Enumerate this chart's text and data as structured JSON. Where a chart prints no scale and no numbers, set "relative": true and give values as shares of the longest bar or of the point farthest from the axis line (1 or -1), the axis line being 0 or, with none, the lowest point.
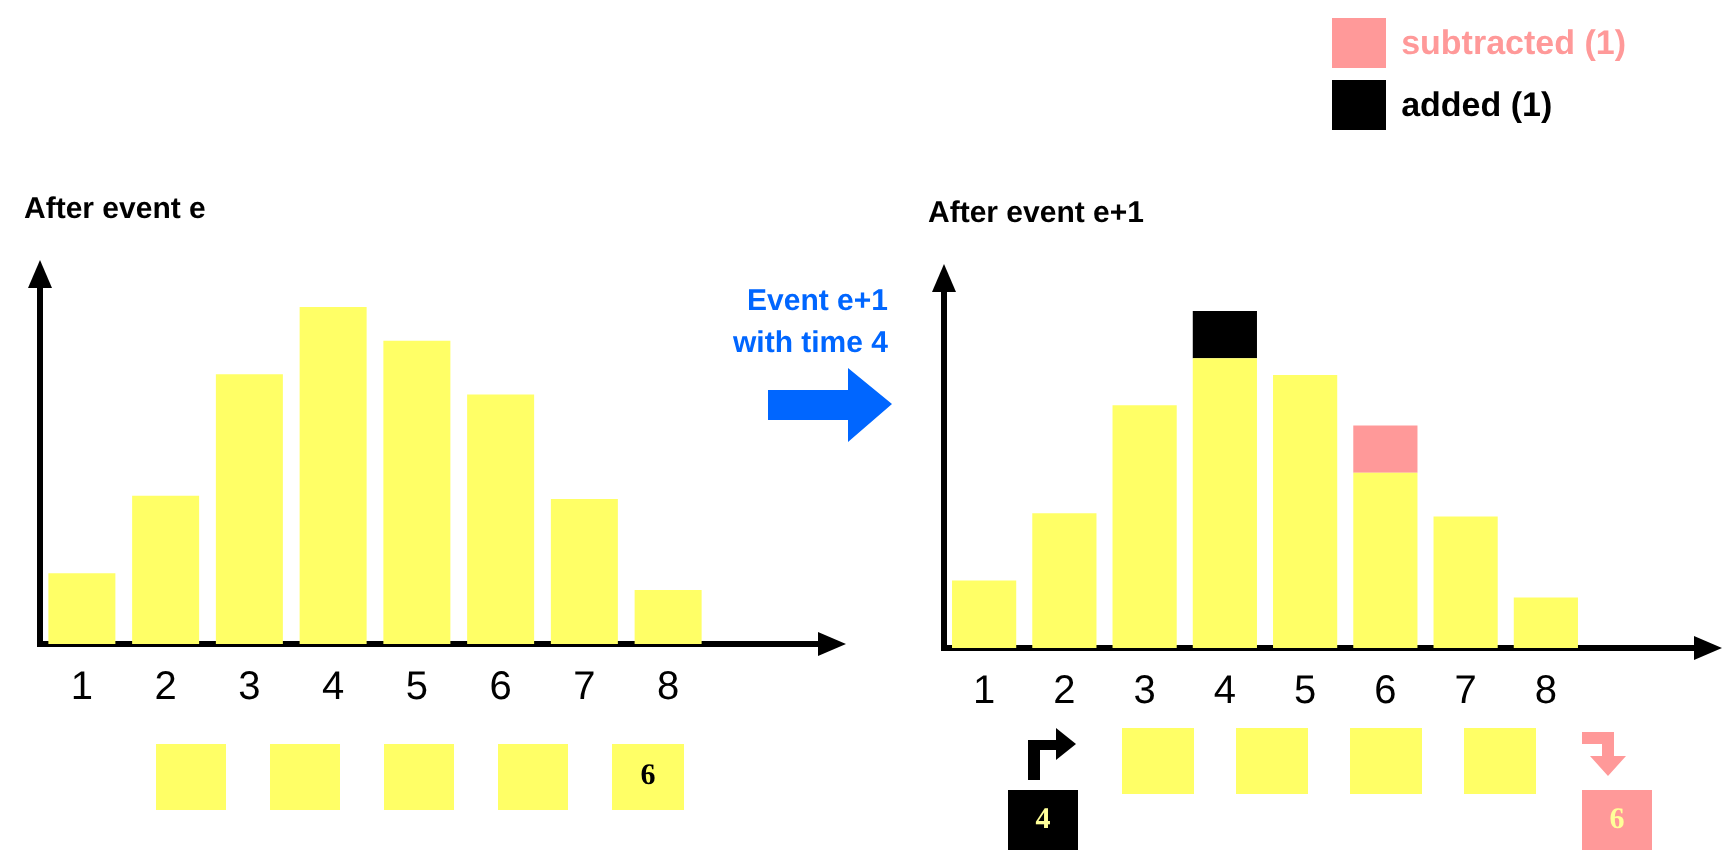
{
  "chart_data": [
    {
      "type": "bar",
      "title": "After event e",
      "categories": [
        "1",
        "2",
        "3",
        "4",
        "5",
        "6",
        "7",
        "8"
      ],
      "values": [
        0.21,
        0.44,
        0.8,
        1,
        0.9,
        0.74,
        0.43,
        0.16
      ],
      "color": "#ffff66",
      "relative": true,
      "grid": false,
      "legend": false,
      "annotations": [
        "6"
      ]
    },
    {
      "type": "bar",
      "title": "After event e+1",
      "categories": [
        "1",
        "2",
        "3",
        "4",
        "5",
        "6",
        "7",
        "8"
      ],
      "stacked": true,
      "relative": true,
      "grid": false,
      "legend": "top right",
      "series": [
        {
          "color": "#ffff66",
          "values": [
            0.2,
            0.4,
            0.72,
            0.86,
            0.81,
            0.52,
            0.39,
            0.15
          ]
        },
        {
          "name": "added (1)",
          "color": "#000000",
          "values": [
            null,
            null,
            null,
            0.14,
            null,
            null,
            null,
            null
          ]
        },
        {
          "name": "subtracted (1)",
          "color": "#ff9999",
          "values": [
            null,
            null,
            null,
            null,
            null,
            0.14,
            null,
            null
          ]
        }
      ],
      "annotations": [
        "Event e+1 with time 4",
        "4",
        "6"
      ]
    }
  ]
}
